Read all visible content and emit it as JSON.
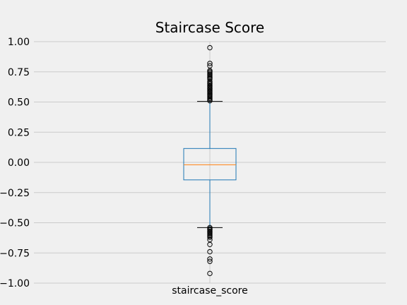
{
  "chart_data": {
    "type": "box",
    "title": "Staircase Score",
    "xlabel": "",
    "ylabel": "",
    "categories": [
      "staircase_score"
    ],
    "ylim": [
      -1.0,
      1.0
    ],
    "yticks": [
      "1.00",
      "0.75",
      "0.50",
      "0.25",
      "0.00",
      "−0.25",
      "−0.50",
      "−0.75",
      "−1.00"
    ],
    "ytick_values": [
      1.0,
      0.75,
      0.5,
      0.25,
      0.0,
      -0.25,
      -0.5,
      -0.75,
      -1.0
    ],
    "grid": true,
    "box": {
      "whisker_low": -0.54,
      "q1": -0.145,
      "median": -0.02,
      "q3": 0.115,
      "whisker_high": 0.505
    },
    "outliers_high": [
      0.95,
      0.82,
      0.8,
      0.76,
      0.75,
      0.74,
      0.73,
      0.72,
      0.71,
      0.7,
      0.69,
      0.67,
      0.66,
      0.65,
      0.64,
      0.63,
      0.62,
      0.61,
      0.6,
      0.59,
      0.58,
      0.57,
      0.56,
      0.55,
      0.54,
      0.53,
      0.52,
      0.51
    ],
    "outliers_low": [
      -0.54,
      -0.55,
      -0.56,
      -0.57,
      -0.58,
      -0.59,
      -0.6,
      -0.61,
      -0.62,
      -0.64,
      -0.68,
      -0.74,
      -0.8,
      -0.82,
      -0.92
    ],
    "colors": {
      "box": "#1f77b4",
      "median": "#ff7f0e",
      "whisker": "#1f77b4",
      "cap": "#000000",
      "outlier": "#000000",
      "background": "#f0f0f0",
      "grid": "#cbcbcb"
    }
  }
}
